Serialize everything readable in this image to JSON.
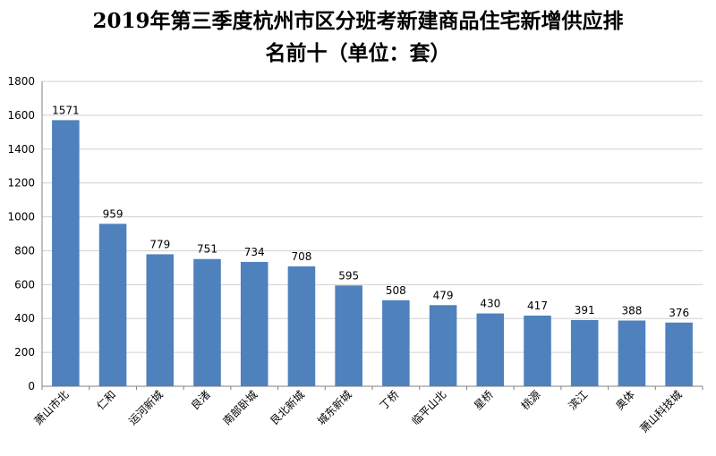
{
  "chart_data": {
    "type": "bar",
    "title_line1": "2019年第三季度杭州市区分班考新建商品住宅新增供应排",
    "title_line2": "名前十（单位：套）",
    "categories": [
      "萧山市北",
      "仁和",
      "运河新城",
      "良渚",
      "南部卧城",
      "艮北新城",
      "城东新城",
      "丁桥",
      "临平山北",
      "星桥",
      "桃源",
      "滨江",
      "奥体",
      "萧山科技城"
    ],
    "values": [
      1571,
      959,
      779,
      751,
      734,
      708,
      595,
      508,
      479,
      430,
      417,
      391,
      388,
      376
    ],
    "ylim": [
      0,
      1800
    ],
    "yticks": [
      0,
      200,
      400,
      600,
      800,
      1000,
      1200,
      1400,
      1600,
      1800
    ],
    "grid": true,
    "bar_color": "#4F81BD"
  }
}
